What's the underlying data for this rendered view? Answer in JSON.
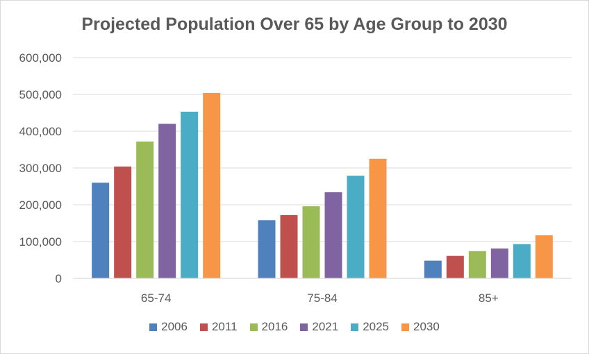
{
  "chart_data": {
    "type": "bar",
    "title": "Projected Population Over 65 by Age Group to 2030",
    "xlabel": "",
    "ylabel": "",
    "categories": [
      "65-74",
      "75-84",
      "85+"
    ],
    "ylim": [
      0,
      600000
    ],
    "yticks": [
      0,
      100000,
      200000,
      300000,
      400000,
      500000,
      600000
    ],
    "ytick_labels": [
      "0",
      "100,000",
      "200,000",
      "300,000",
      "400,000",
      "500,000",
      "600,000"
    ],
    "grid": true,
    "legend_position": "bottom",
    "series": [
      {
        "name": "2006",
        "color": "#4f81bd",
        "values": [
          260000,
          158000,
          48000
        ]
      },
      {
        "name": "2011",
        "color": "#c0504d",
        "values": [
          304000,
          172000,
          61000
        ]
      },
      {
        "name": "2016",
        "color": "#9bbb59",
        "values": [
          372000,
          196000,
          74000
        ]
      },
      {
        "name": "2021",
        "color": "#8064a2",
        "values": [
          420000,
          234000,
          81000
        ]
      },
      {
        "name": "2025",
        "color": "#4bacc6",
        "values": [
          453000,
          279000,
          93000
        ]
      },
      {
        "name": "2030",
        "color": "#f79646",
        "values": [
          504000,
          325000,
          117000
        ]
      }
    ]
  }
}
